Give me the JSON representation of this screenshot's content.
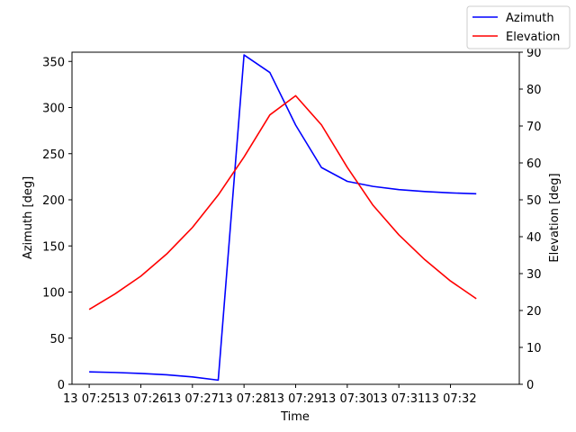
{
  "chart_data": {
    "type": "line",
    "xlabel": "Time",
    "ylabel_left": "Azimuth [deg]",
    "ylabel_right": "Elevation [deg]",
    "x_ticks": [
      "13 07:25",
      "13 07:26",
      "13 07:27",
      "13 07:28",
      "13 07:29",
      "13 07:30",
      "13 07:31",
      "13 07:32"
    ],
    "x": [
      "07:25:00",
      "07:25:30",
      "07:26:00",
      "07:26:30",
      "07:27:00",
      "07:27:30",
      "07:28:00",
      "07:28:30",
      "07:29:00",
      "07:29:30",
      "07:30:00",
      "07:30:30",
      "07:31:00",
      "07:31:30",
      "07:32:00",
      "07:32:30"
    ],
    "xlim": [
      "07:24:40",
      "07:33:20"
    ],
    "ylim_left": [
      0,
      360
    ],
    "yticks_left": [
      0,
      50,
      100,
      150,
      200,
      250,
      300,
      350
    ],
    "ylim_right": [
      0,
      90
    ],
    "yticks_right": [
      0,
      10,
      20,
      30,
      40,
      50,
      60,
      70,
      80,
      90
    ],
    "series": [
      {
        "name": "Azimuth",
        "axis": "left",
        "color": "#0000ff",
        "values": [
          13.5,
          12.8,
          11.8,
          10.3,
          8.0,
          4.5,
          357,
          338,
          281,
          235,
          220,
          214.5,
          211,
          209,
          207.5,
          206.5
        ]
      },
      {
        "name": "Elevation",
        "axis": "right",
        "color": "#ff0000",
        "values": [
          20.3,
          24.5,
          29.3,
          35.3,
          42.5,
          51.3,
          61.6,
          73.0,
          78.2,
          70.3,
          58.8,
          48.5,
          40.5,
          33.8,
          28.0,
          23.2
        ]
      }
    ],
    "legend_position": "top-right"
  }
}
